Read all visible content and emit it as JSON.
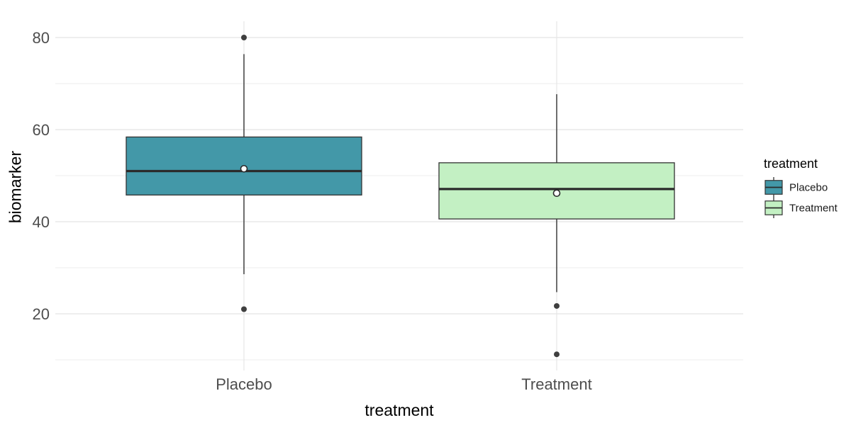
{
  "chart_data": {
    "type": "boxplot",
    "title": "",
    "xlabel": "treatment",
    "ylabel": "biomarker",
    "categories": [
      "Placebo",
      "Treatment"
    ],
    "y_ticks": [
      20,
      40,
      60,
      80
    ],
    "y_minor_gridlines": [
      10,
      30,
      50,
      70
    ],
    "ylim": [
      7.7,
      83.5
    ],
    "grid": "horizontal major+minor, vertical at categories",
    "legend": {
      "title": "treatment",
      "position": "right",
      "entries": [
        {
          "label": "Placebo",
          "fill": "#4398a8"
        },
        {
          "label": "Treatment",
          "fill": "#c3f0c3"
        }
      ]
    },
    "series": [
      {
        "name": "Placebo",
        "fill": "#4398a8",
        "whisker_low": 28.6,
        "q1": 45.8,
        "median": 51.0,
        "q3": 58.4,
        "whisker_high": 76.4,
        "mean": 51.5,
        "outliers": [
          80,
          21
        ]
      },
      {
        "name": "Treatment",
        "fill": "#c3f0c3",
        "whisker_low": 24.7,
        "q1": 40.6,
        "median": 47.1,
        "q3": 52.8,
        "whisker_high": 67.7,
        "mean": 46.2,
        "outliers": [
          21.7,
          11.2
        ]
      }
    ],
    "colors": {
      "box_stroke": "#333333",
      "median": "#2b2b2b",
      "outlier": "#3f3f3f",
      "mean_fill": "#ffffff",
      "mean_stroke": "#2b2b2b",
      "grid_major": "#e3e3e3",
      "grid_minor": "#f0f0f0",
      "grid_vertical": "#e7e7e7",
      "tick_text": "#4d4d4d",
      "title_text": "#000000"
    }
  }
}
